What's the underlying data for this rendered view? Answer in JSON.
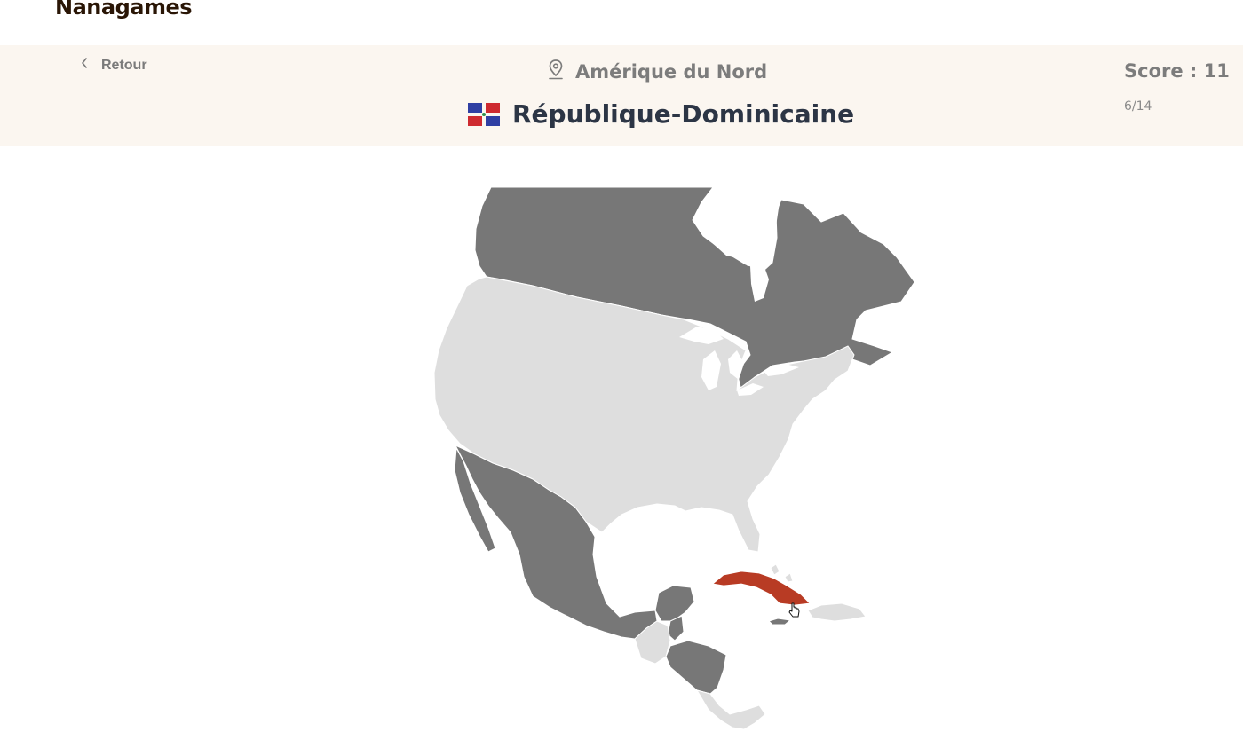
{
  "brand": {
    "name": "Nanagames"
  },
  "header": {
    "back_label": "Retour",
    "region_label": "Amérique du Nord",
    "country_label": "République-Dominicaine",
    "score_label": "Score : 11",
    "progress_label": "6/14"
  },
  "colors": {
    "header_bg": "#fbf6f0",
    "land_unanswered": "#777777",
    "land_found": "#dedede",
    "land_selected": "#b83b24",
    "title_text": "#2c3545"
  },
  "icons": {
    "back": "chevron-left-icon",
    "region": "map-pin-icon",
    "flag": "dominican-republic-flag",
    "cursor": "hand-pointer-icon"
  },
  "map": {
    "highlighted_country": "Cuba",
    "countries_found": [
      "États-Unis",
      "Guatemala",
      "Costa Rica",
      "Panama",
      "Haïti",
      "République-Dominicaine",
      "Bahamas"
    ],
    "countries_not_found": [
      "Canada",
      "Mexique",
      "Belize",
      "Honduras",
      "Nicaragua",
      "Jamaïque"
    ]
  }
}
